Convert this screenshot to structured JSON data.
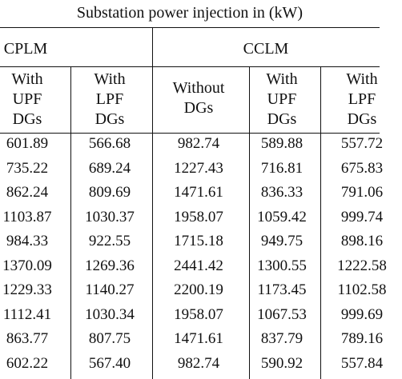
{
  "title": "Substation power injection in (kW)",
  "groups": [
    {
      "label": "CPLM"
    },
    {
      "label": "CCLM"
    }
  ],
  "subheaders": [
    {
      "lines": [
        "With",
        "UPF",
        "DGs"
      ]
    },
    {
      "lines": [
        "With",
        "LPF",
        "DGs"
      ]
    },
    {
      "lines": [
        "Without",
        "DGs"
      ]
    },
    {
      "lines": [
        "With",
        "UPF",
        "DGs"
      ]
    },
    {
      "lines": [
        "With",
        "LPF",
        "DGs"
      ]
    }
  ],
  "rows": [
    [
      "601.89",
      "566.68",
      "982.74",
      "589.88",
      "557.72"
    ],
    [
      "735.22",
      "689.24",
      "1227.43",
      "716.81",
      "675.83"
    ],
    [
      "862.24",
      "809.69",
      "1471.61",
      "836.33",
      "791.06"
    ],
    [
      "1103.87",
      "1030.37",
      "1958.07",
      "1059.42",
      "999.74"
    ],
    [
      "984.33",
      "922.55",
      "1715.18",
      "949.75",
      "898.16"
    ],
    [
      "1370.09",
      "1269.36",
      "2441.42",
      "1300.55",
      "1222.58"
    ],
    [
      "1229.33",
      "1140.27",
      "2200.19",
      "1173.45",
      "1102.58"
    ],
    [
      "1112.41",
      "1030.34",
      "1958.07",
      "1067.53",
      "999.69"
    ],
    [
      "863.77",
      "807.75",
      "1471.61",
      "837.79",
      "789.16"
    ],
    [
      "602.22",
      "567.40",
      "982.74",
      "590.92",
      "557.84"
    ]
  ]
}
